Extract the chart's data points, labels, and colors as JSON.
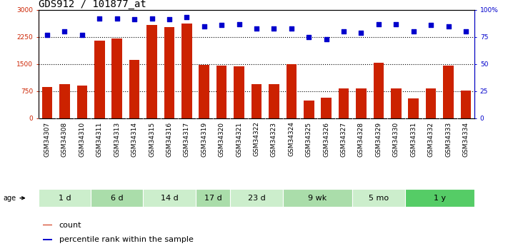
{
  "title": "GDS912 / 101877_at",
  "samples": [
    "GSM34307",
    "GSM34308",
    "GSM34310",
    "GSM34311",
    "GSM34313",
    "GSM34314",
    "GSM34315",
    "GSM34316",
    "GSM34317",
    "GSM34319",
    "GSM34320",
    "GSM34321",
    "GSM34322",
    "GSM34323",
    "GSM34324",
    "GSM34325",
    "GSM34326",
    "GSM34327",
    "GSM34328",
    "GSM34329",
    "GSM34330",
    "GSM34331",
    "GSM34332",
    "GSM34333",
    "GSM34334"
  ],
  "counts": [
    870,
    950,
    900,
    2150,
    2200,
    1620,
    2580,
    2530,
    2620,
    1470,
    1460,
    1440,
    950,
    950,
    1490,
    490,
    560,
    820,
    820,
    1530,
    820,
    550,
    820,
    1460,
    760
  ],
  "percentiles": [
    77,
    80,
    77,
    92,
    92,
    91,
    92,
    91,
    93,
    85,
    86,
    87,
    83,
    83,
    83,
    75,
    73,
    80,
    79,
    87,
    87,
    80,
    86,
    85,
    80
  ],
  "groups": [
    {
      "label": "1 d",
      "start": 0,
      "end": 3,
      "color": "#cceecc"
    },
    {
      "label": "6 d",
      "start": 3,
      "end": 6,
      "color": "#aaddaa"
    },
    {
      "label": "14 d",
      "start": 6,
      "end": 9,
      "color": "#cceecc"
    },
    {
      "label": "17 d",
      "start": 9,
      "end": 11,
      "color": "#aaddaa"
    },
    {
      "label": "23 d",
      "start": 11,
      "end": 14,
      "color": "#cceecc"
    },
    {
      "label": "9 wk",
      "start": 14,
      "end": 18,
      "color": "#aaddaa"
    },
    {
      "label": "5 mo",
      "start": 18,
      "end": 21,
      "color": "#cceecc"
    },
    {
      "label": "1 y",
      "start": 21,
      "end": 25,
      "color": "#55cc66"
    }
  ],
  "bar_color": "#cc2200",
  "dot_color": "#0000cc",
  "ylim_left": [
    0,
    3000
  ],
  "ylim_right": [
    0,
    100
  ],
  "yticks_left": [
    0,
    750,
    1500,
    2250,
    3000
  ],
  "yticks_right": [
    0,
    25,
    50,
    75,
    100
  ],
  "ytick_labels_right": [
    "0",
    "25",
    "50",
    "75",
    "100%"
  ],
  "legend_count_label": "count",
  "legend_pct_label": "percentile rank within the sample",
  "age_label": "age",
  "tick_fontsize": 6.5,
  "group_label_fontsize": 8,
  "title_fontsize": 10,
  "sample_bg_color": "#cccccc",
  "grid_yticks": [
    750,
    1500,
    2250
  ]
}
